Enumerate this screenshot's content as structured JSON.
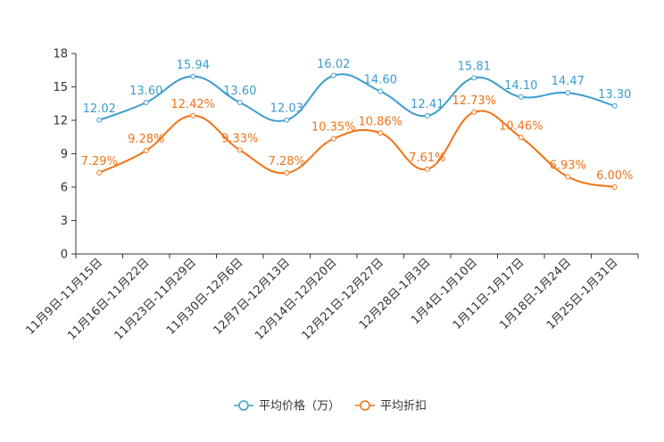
{
  "chart_data": {
    "type": "line",
    "title": "",
    "xlabel": "",
    "ylabel": "",
    "ylim": [
      0,
      18
    ],
    "yticks": [
      0,
      3,
      6,
      9,
      12,
      15,
      18
    ],
    "grid": false,
    "categories": [
      "11月9日-11月15日",
      "11月16日-11月22日",
      "11月23日-11月29日",
      "11月30日-12月6日",
      "12月7日-12月13日",
      "12月14日-12月20日",
      "12月21日-12月27日",
      "12月28日-1月3日",
      "1月4日-1月10日",
      "1月11日-1月17日",
      "1月18日-1月24日",
      "1月25日-1月31日"
    ],
    "series": [
      {
        "name": "平均价格（万）",
        "color": "#3b9ccf",
        "values": [
          12.02,
          13.6,
          15.94,
          13.6,
          12.03,
          16.02,
          14.6,
          12.41,
          15.81,
          14.1,
          14.47,
          13.3
        ],
        "labels": [
          "12.02",
          "13.60",
          "15.94",
          "13.60",
          "12.03",
          "16.02",
          "14.60",
          "12.41",
          "15.81",
          "14.10",
          "14.47",
          "13.30"
        ]
      },
      {
        "name": "平均折扣",
        "color": "#f07316",
        "values": [
          7.29,
          9.28,
          12.42,
          9.33,
          7.28,
          10.35,
          10.86,
          7.61,
          12.73,
          10.46,
          6.93,
          6.0
        ],
        "labels": [
          "7.29%",
          "9.28%",
          "12.42%",
          "9.33%",
          "7.28%",
          "10.35%",
          "10.86%",
          "7.61%",
          "12.73%",
          "10.46%",
          "6.93%",
          "6.00%"
        ]
      }
    ],
    "legend_position": "bottom-center"
  }
}
